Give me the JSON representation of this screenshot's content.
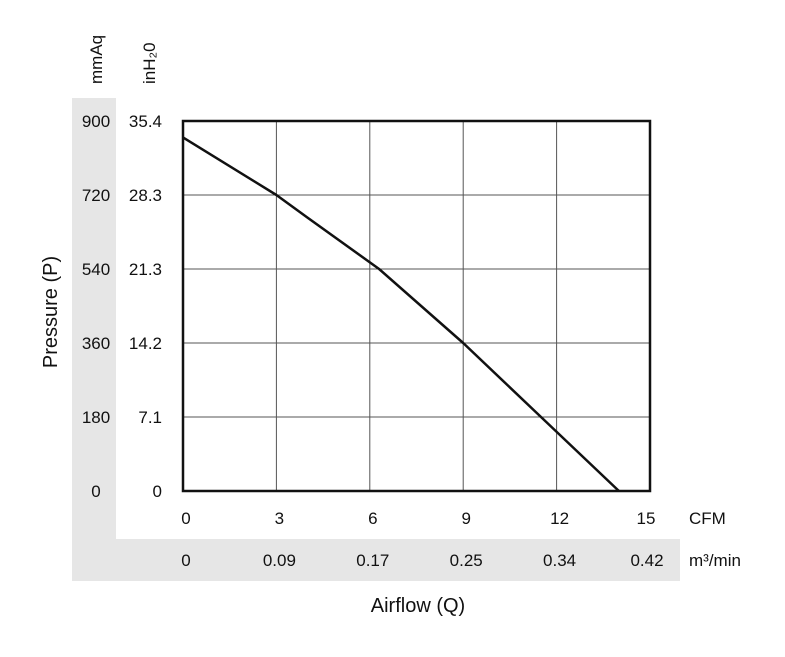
{
  "chart_data": {
    "type": "line",
    "title": "",
    "xlabel": "Airflow (Q)",
    "ylabel": "Pressure (P)",
    "x_unit_primary": "CFM",
    "x_unit_secondary": "m³/min",
    "y_unit_primary": "mmAq",
    "y_unit_secondary": "inH₂0",
    "xlim": [
      0,
      15
    ],
    "ylim": [
      0,
      900
    ],
    "x_ticks_primary": [
      "0",
      "3",
      "6",
      "9",
      "12",
      "15"
    ],
    "x_ticks_secondary": [
      "0",
      "0.09",
      "0.17",
      "0.25",
      "0.34",
      "0.42"
    ],
    "y_ticks_primary": [
      "0",
      "180",
      "360",
      "540",
      "720",
      "900"
    ],
    "y_ticks_secondary": [
      "0",
      "7.1",
      "14.2",
      "21.3",
      "28.3",
      "35.4"
    ],
    "grid": true,
    "legend": "none",
    "series": [
      {
        "x": [
          0,
          3,
          4,
          6.3,
          9,
          11.5,
          14
        ],
        "y": [
          860,
          720,
          665,
          540,
          360,
          180,
          0
        ]
      }
    ],
    "colors": {
      "line": "#111111",
      "band": "#e6e6e6",
      "grid": "#555555"
    }
  }
}
